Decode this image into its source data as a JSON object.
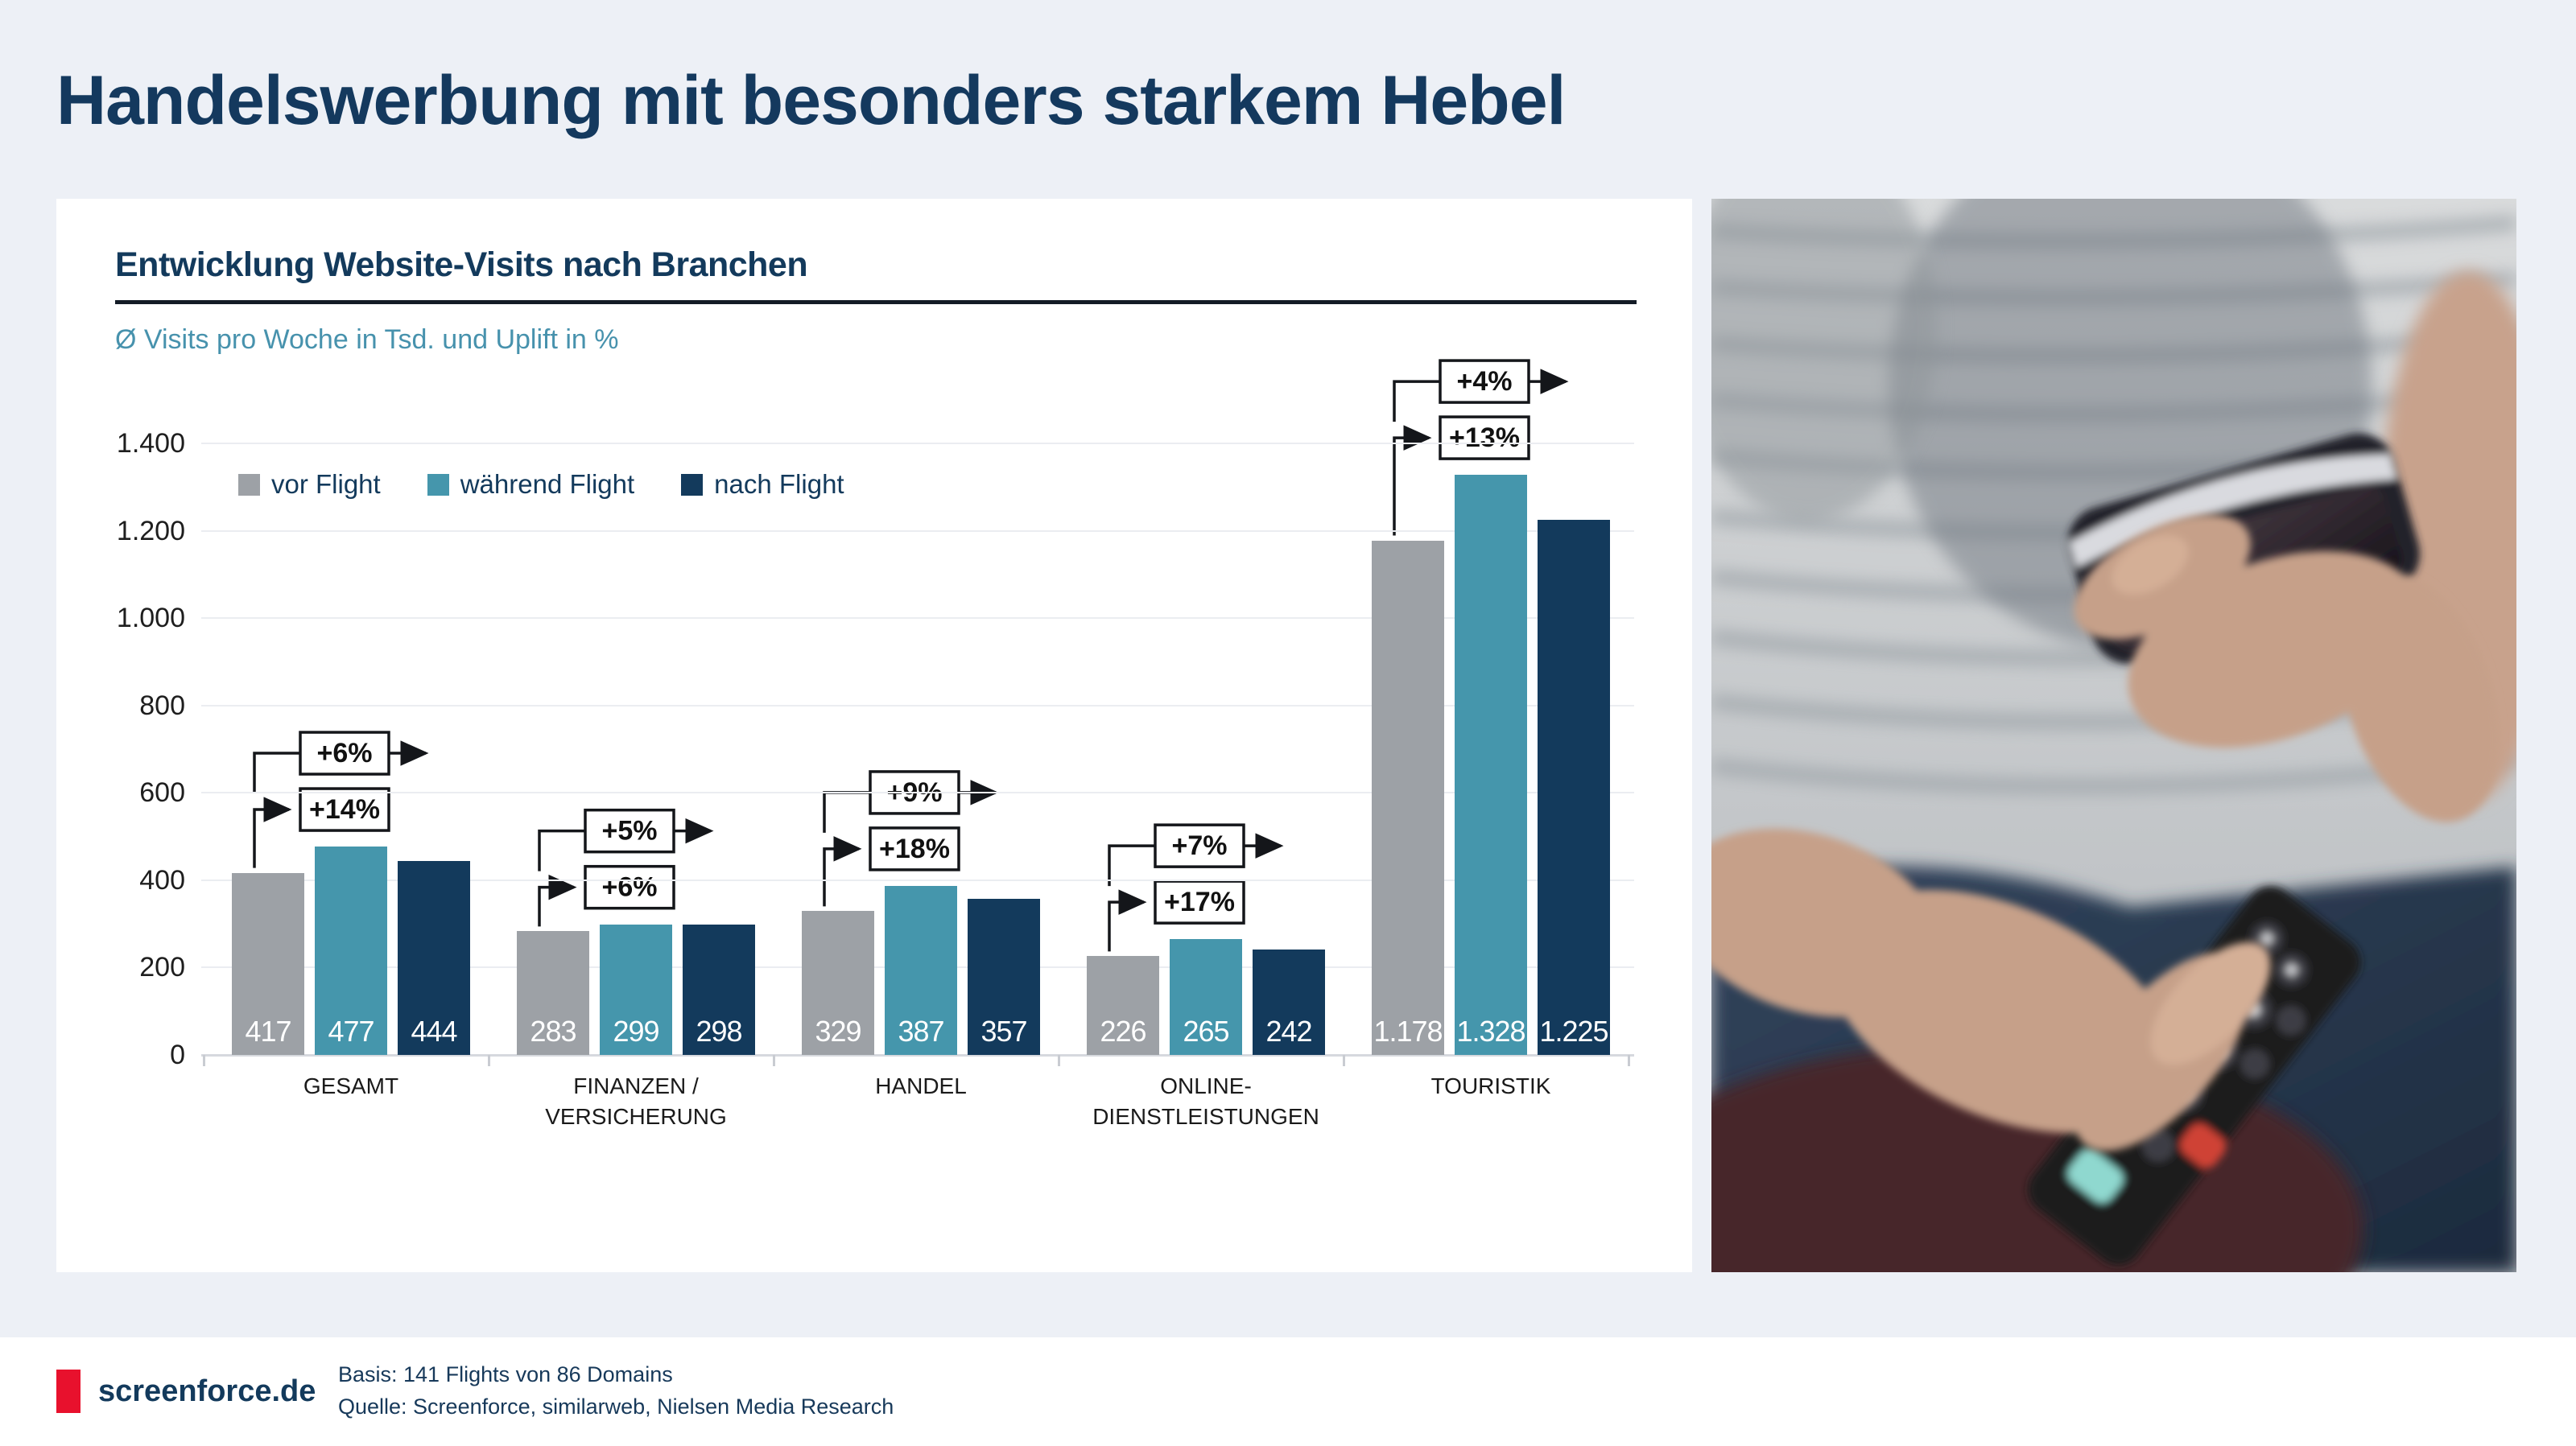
{
  "page": {
    "title": "Handelswerbung mit besonders starkem Hebel"
  },
  "chart": {
    "title": "Entwicklung Website-Visits nach Branchen",
    "subtitle": "Ø Visits pro Woche in Tsd. und Uplift in %",
    "legend": [
      {
        "label": "vor Flight",
        "color": "#9da1a6"
      },
      {
        "label": "während Flight",
        "color": "#4596ac"
      },
      {
        "label": "nach Flight",
        "color": "#133a5c"
      }
    ]
  },
  "chart_data": {
    "type": "bar",
    "categories": [
      "GESAMT",
      "FINANZEN / VERSICHERUNG",
      "HANDEL",
      "ONLINE-DIENSTLEISTUNGEN",
      "TOURISTIK"
    ],
    "category_lines": [
      [
        "GESAMT"
      ],
      [
        "FINANZEN /",
        "VERSICHERUNG"
      ],
      [
        "HANDEL"
      ],
      [
        "ONLINE-",
        "DIENSTLEISTUNGEN"
      ],
      [
        "TOURISTIK"
      ]
    ],
    "series": [
      {
        "name": "vor Flight",
        "color": "#9da1a6",
        "values": [
          417,
          283,
          329,
          226,
          1178
        ]
      },
      {
        "name": "während Flight",
        "color": "#4596ac",
        "values": [
          477,
          299,
          387,
          265,
          1328
        ]
      },
      {
        "name": "nach Flight",
        "color": "#133a5c",
        "values": [
          444,
          298,
          357,
          242,
          1225
        ]
      }
    ],
    "value_labels": [
      [
        "417",
        "477",
        "444"
      ],
      [
        "283",
        "299",
        "298"
      ],
      [
        "329",
        "387",
        "357"
      ],
      [
        "226",
        "265",
        "242"
      ],
      [
        "1.178",
        "1.328",
        "1.225"
      ]
    ],
    "uplift_vs_during": [
      "+14%",
      "+6%",
      "+18%",
      "+17%",
      "+13%"
    ],
    "uplift_vs_after": [
      "+6%",
      "+5%",
      "+9%",
      "+7%",
      "+4%"
    ],
    "ylim": [
      0,
      1400
    ],
    "yticks": [
      "0",
      "200",
      "400",
      "600",
      "800",
      "1.000",
      "1.200",
      "1.400"
    ],
    "grid": true,
    "legend_position": "top-left"
  },
  "photo": {
    "alt_name": "man-with-smartphone-and-tv-remote"
  },
  "footer": {
    "brand": "screenforce.de",
    "basis": "Basis: 141 Flights von 86 Domains",
    "quelle": "Quelle: Screenforce, similarweb, Nielsen Media Research"
  },
  "colors": {
    "background": "#edf0f6",
    "panel": "#ffffff",
    "headline": "#14395e",
    "subtitle": "#4792ad",
    "rule": "#131b26",
    "grid": "#ebedf1",
    "callout_border": "#14161a",
    "brand_red": "#e8112d"
  }
}
